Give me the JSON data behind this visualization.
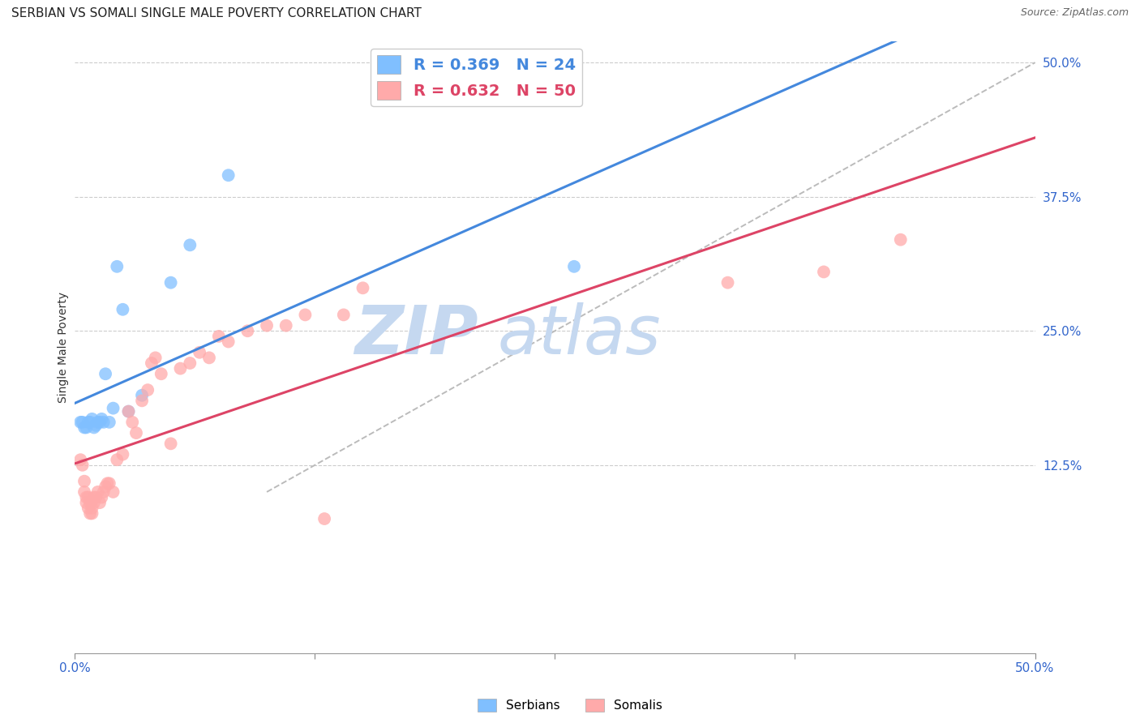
{
  "title": "SERBIAN VS SOMALI SINGLE MALE POVERTY CORRELATION CHART",
  "source": "Source: ZipAtlas.com",
  "ylabel": "Single Male Poverty",
  "xlim": [
    0.0,
    0.5
  ],
  "ylim": [
    -0.05,
    0.52
  ],
  "ytick_right": [
    0.125,
    0.25,
    0.375,
    0.5
  ],
  "ytick_right_labels": [
    "12.5%",
    "25.0%",
    "37.5%",
    "50.0%"
  ],
  "xtick_vals": [
    0.0,
    0.125,
    0.25,
    0.375,
    0.5
  ],
  "xtick_labels": [
    "0.0%",
    "",
    "",
    "",
    "50.0%"
  ],
  "watermark_zip": "ZIP",
  "watermark_atlas": "atlas",
  "serbian_R": 0.369,
  "serbian_N": 24,
  "somali_R": 0.632,
  "somali_N": 50,
  "serbian_color": "#80bfff",
  "somali_color": "#ffaaaa",
  "serbian_line_color": "#4488dd",
  "somali_line_color": "#dd4466",
  "dashed_line_color": "#bbbbbb",
  "title_fontsize": 11,
  "axis_label_fontsize": 10,
  "tick_fontsize": 11,
  "legend_fontsize": 14,
  "serbian_x": [
    0.003,
    0.004,
    0.005,
    0.006,
    0.007,
    0.008,
    0.009,
    0.01,
    0.011,
    0.012,
    0.013,
    0.014,
    0.015,
    0.016,
    0.018,
    0.02,
    0.022,
    0.025,
    0.028,
    0.035,
    0.05,
    0.06,
    0.08,
    0.26
  ],
  "serbian_y": [
    0.165,
    0.165,
    0.16,
    0.16,
    0.165,
    0.165,
    0.168,
    0.16,
    0.162,
    0.165,
    0.165,
    0.168,
    0.165,
    0.21,
    0.165,
    0.178,
    0.31,
    0.27,
    0.175,
    0.19,
    0.295,
    0.33,
    0.395,
    0.31
  ],
  "somali_x": [
    0.003,
    0.004,
    0.005,
    0.005,
    0.006,
    0.006,
    0.007,
    0.007,
    0.008,
    0.008,
    0.009,
    0.009,
    0.01,
    0.01,
    0.011,
    0.012,
    0.013,
    0.014,
    0.015,
    0.016,
    0.017,
    0.018,
    0.02,
    0.022,
    0.025,
    0.028,
    0.03,
    0.032,
    0.035,
    0.038,
    0.04,
    0.042,
    0.045,
    0.05,
    0.055,
    0.06,
    0.065,
    0.07,
    0.075,
    0.08,
    0.09,
    0.1,
    0.11,
    0.12,
    0.13,
    0.14,
    0.15,
    0.34,
    0.39,
    0.43
  ],
  "somali_y": [
    0.13,
    0.125,
    0.11,
    0.1,
    0.095,
    0.09,
    0.085,
    0.095,
    0.08,
    0.09,
    0.08,
    0.085,
    0.09,
    0.095,
    0.095,
    0.1,
    0.09,
    0.095,
    0.1,
    0.105,
    0.108,
    0.108,
    0.1,
    0.13,
    0.135,
    0.175,
    0.165,
    0.155,
    0.185,
    0.195,
    0.22,
    0.225,
    0.21,
    0.145,
    0.215,
    0.22,
    0.23,
    0.225,
    0.245,
    0.24,
    0.25,
    0.255,
    0.255,
    0.265,
    0.075,
    0.265,
    0.29,
    0.295,
    0.305,
    0.335
  ]
}
